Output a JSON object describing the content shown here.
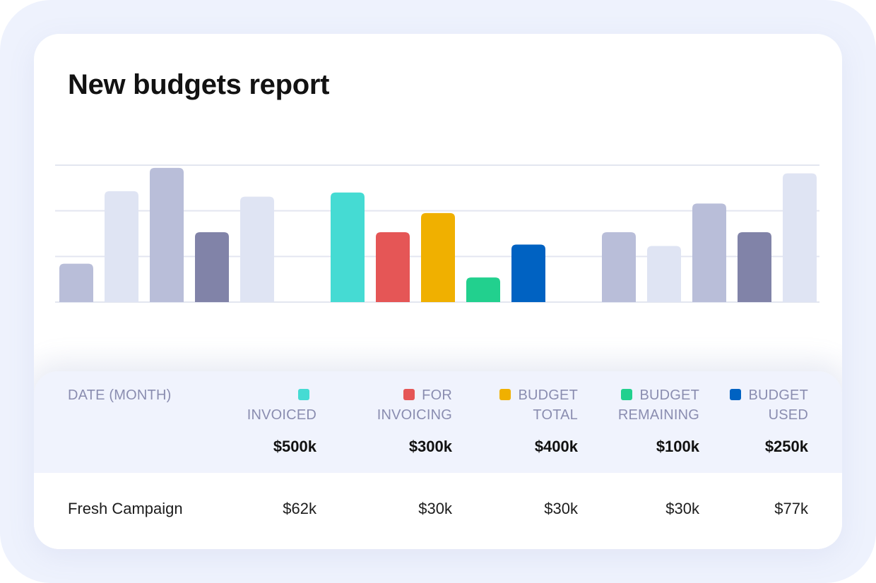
{
  "report": {
    "title": "New budgets report"
  },
  "colors": {
    "invoiced": "#45dbd3",
    "for_invoicing": "#e55656",
    "budget_total": "#f0b000",
    "budget_remaining": "#22d08e",
    "budget_used": "#0062c2",
    "muted_light": "#dfe4f3",
    "muted_mid": "#b9bed9",
    "muted_dark": "#8183a8"
  },
  "chart_data": {
    "type": "bar",
    "categories": [],
    "grid": true,
    "ylim": [
      0,
      100
    ],
    "groups": [
      {
        "values": [
          28,
          81,
          98,
          51,
          77
        ],
        "colors": [
          "muted_mid",
          "muted_light",
          "muted_mid",
          "muted_dark",
          "muted_light"
        ]
      },
      {
        "values": [
          80,
          51,
          65,
          18,
          42
        ],
        "colors": [
          "invoiced",
          "for_invoicing",
          "budget_total",
          "budget_remaining",
          "budget_used"
        ]
      },
      {
        "values": [
          51,
          41,
          72,
          51,
          94
        ],
        "colors": [
          "muted_mid",
          "muted_light",
          "muted_mid",
          "muted_dark",
          "muted_light"
        ]
      }
    ]
  },
  "table": {
    "columns": [
      {
        "key": "date",
        "label": "DATE (MONTH)"
      },
      {
        "key": "invoiced",
        "label": "INVOICED",
        "swatch": "invoiced",
        "total": "$500k"
      },
      {
        "key": "for_invoicing",
        "label_lines": [
          "FOR",
          "INVOICING"
        ],
        "swatch": "for_invoicing",
        "total": "$300k"
      },
      {
        "key": "budget_total",
        "label_lines": [
          "BUDGET",
          "TOTAL"
        ],
        "swatch": "budget_total",
        "total": "$400k"
      },
      {
        "key": "budget_remaining",
        "label_lines": [
          "BUDGET",
          "REMAINING"
        ],
        "swatch": "budget_remaining",
        "total": "$100k"
      },
      {
        "key": "budget_used",
        "label_lines": [
          "BUDGET",
          "USED"
        ],
        "swatch": "budget_used",
        "total": "$250k"
      }
    ],
    "rows": [
      {
        "name": "Fresh Campaign",
        "values": [
          "$62k",
          "$30k",
          "$30k",
          "$30k",
          "$77k"
        ]
      }
    ]
  }
}
